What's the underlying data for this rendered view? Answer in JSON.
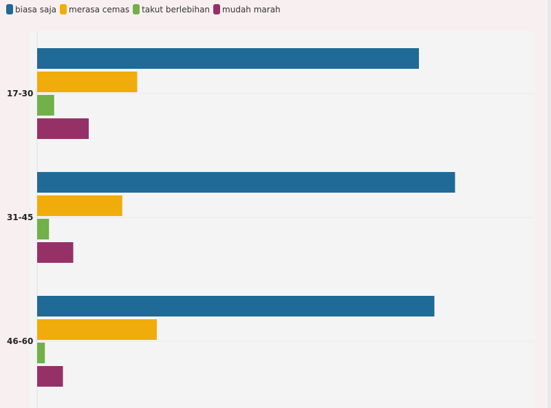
{
  "chart_data": {
    "type": "bar",
    "orientation": "horizontal",
    "categories": [
      "17-30",
      "31-45",
      "46-60"
    ],
    "series": [
      {
        "name": "biasa saja",
        "color": "#1f6a96",
        "values": [
          74,
          81,
          77
        ]
      },
      {
        "name": "merasa cemas",
        "color": "#f0ac0a",
        "values": [
          19.4,
          16.5,
          23.2
        ]
      },
      {
        "name": "takut berlebihan",
        "color": "#72b04a",
        "values": [
          3.3,
          2.3,
          1.5
        ]
      },
      {
        "name": "mudah marah",
        "color": "#963168",
        "values": [
          10,
          7,
          5
        ]
      }
    ],
    "xlim": [
      0,
      96
    ],
    "legend": "top-left",
    "grid": true
  }
}
